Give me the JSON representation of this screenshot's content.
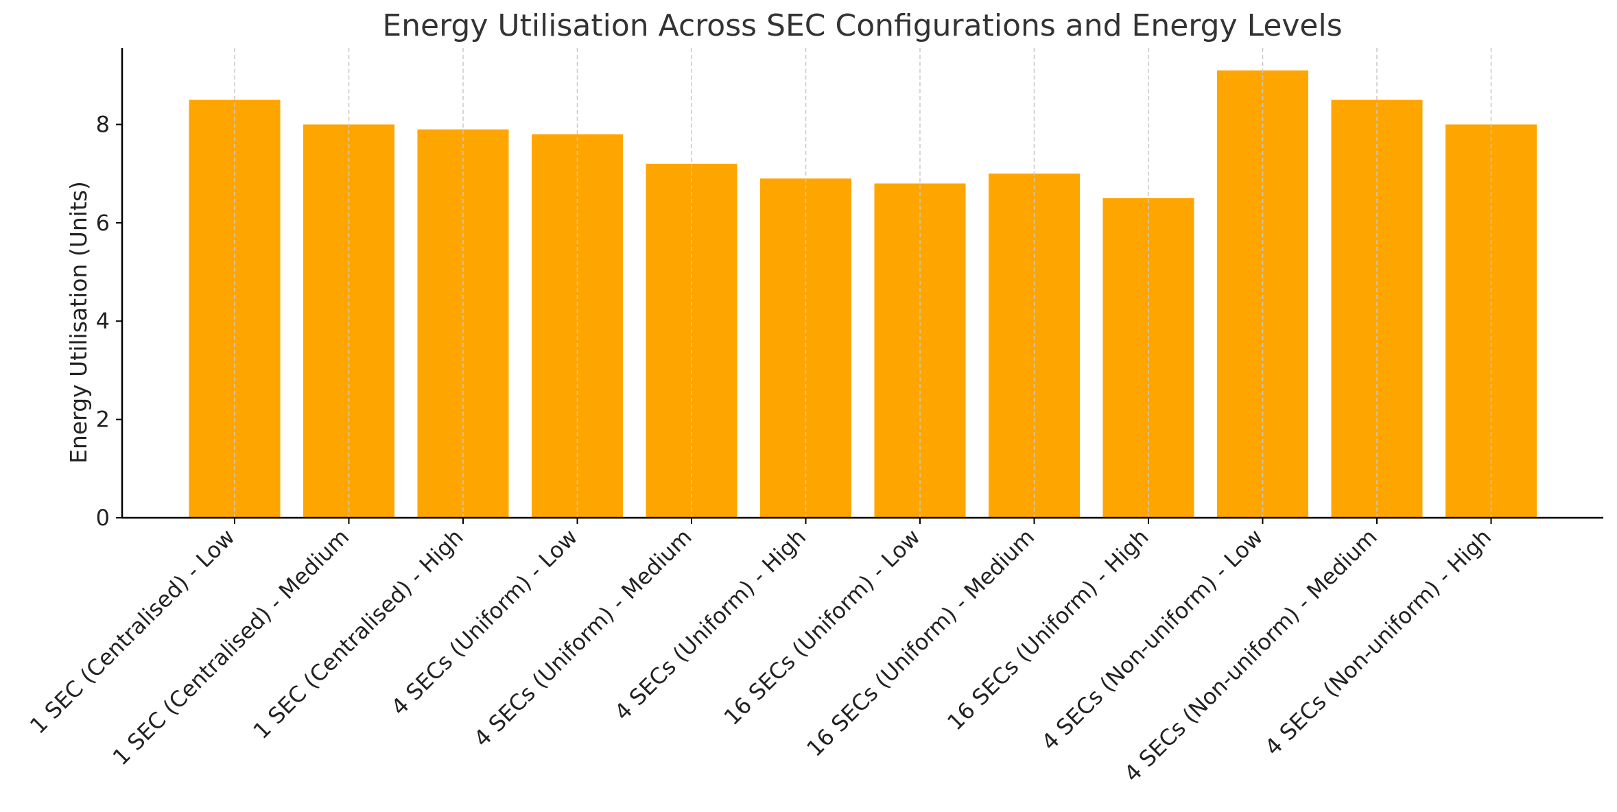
{
  "chart_data": {
    "type": "bar",
    "title": "Energy Utilisation Across SEC Configurations and Energy Levels",
    "xlabel": "",
    "ylabel": "Energy Utilisation (Units)",
    "categories": [
      "1 SEC (Centralised) - Low",
      "1 SEC (Centralised) - Medium",
      "1 SEC (Centralised) - High",
      "4 SECs (Uniform) - Low",
      "4 SECs (Uniform) - Medium",
      "4 SECs (Uniform) - High",
      "16 SECs (Uniform) - Low",
      "16 SECs (Uniform) - Medium",
      "16 SECs (Uniform) - High",
      "4 SECs (Non-uniform) - Low",
      "4 SECs (Non-uniform) - Medium",
      "4 SECs (Non-uniform) - High"
    ],
    "values": [
      8.5,
      8.0,
      7.9,
      7.8,
      7.2,
      6.9,
      6.8,
      7.0,
      6.5,
      9.1,
      8.5,
      8.0
    ],
    "ylim": [
      0,
      9.555
    ],
    "yticks": [
      0,
      2,
      4,
      6,
      8
    ],
    "grid": {
      "x": true,
      "y": false,
      "style": "dashed"
    },
    "legend": "none",
    "colors": {
      "bar": "#FFA500",
      "grid": "#c8c8c8",
      "axis": "#000000",
      "text": "#222222"
    }
  }
}
